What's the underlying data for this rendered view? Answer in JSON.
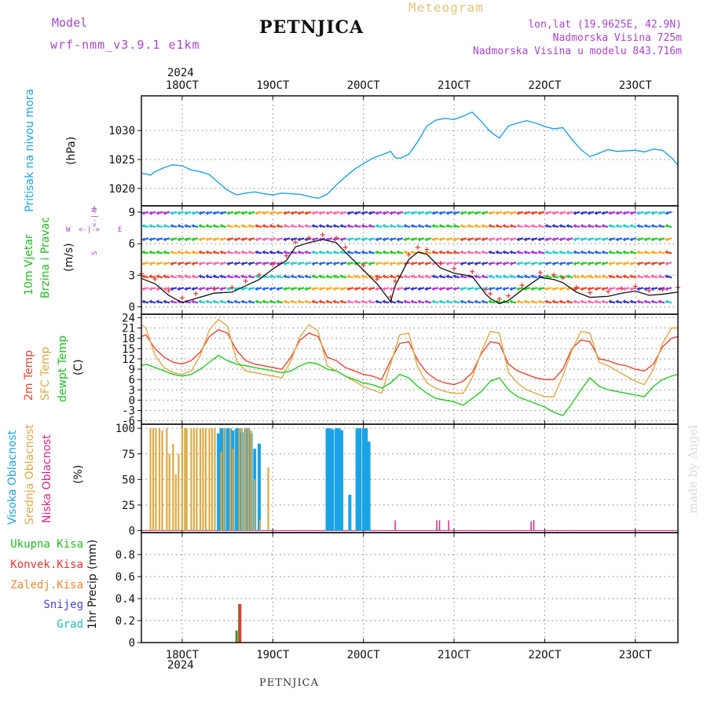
{
  "header": {
    "model_label": "Model",
    "model_name": "wrf-nmm_v3.9.1 e1km",
    "station": "PETNJICA",
    "product": "Meteogram",
    "coords": "lon,lat (19.9625E, 42.9N)",
    "elevation": "Nadmorska Visina 725m",
    "model_elevation": "Nadmorska Visina u modelu 843.716m"
  },
  "top_axis": {
    "year": "2024",
    "dates": [
      "18OCT",
      "19OCT",
      "20OCT",
      "21OCT",
      "22OCT",
      "23OCT"
    ]
  },
  "bottom_axis": {
    "year": "2024",
    "dates": [
      "18OCT",
      "19OCT",
      "20OCT",
      "21OCT",
      "22OCT",
      "23OCT"
    ]
  },
  "footer_station": "PETNJICA",
  "watermark": "made by Angel",
  "panels": {
    "pressure": {
      "label": "Pritisak na nivou mora",
      "unit": "(hPa)",
      "color": "#1aa3e6"
    },
    "wind": {
      "label_line1": "10m Vjetar",
      "label_line2": "Brzina i Pravac",
      "unit": "(m/s)",
      "compass_n": "N",
      "compass_s": "S",
      "compass_w": "W",
      "compass_e": "E",
      "compass_arrow_top": "<-|->",
      "compass_arrow_bottom": "<-|->",
      "label_color": "#22bb22",
      "compass_color": "#aa44cc"
    },
    "temperature": {
      "label_2m": "2m Temp",
      "label_sfc": "SFC Temp",
      "label_dewpt": "dewpt Temp",
      "unit": "(C)",
      "colors": {
        "t2m": "#ee4433",
        "sfc": "#ddaa44",
        "dewpt": "#22cc22"
      }
    },
    "clouds": {
      "label_high": "Visoka Oblacnost",
      "label_mid": "Srednja Oblacnost",
      "label_low": "Niska Oblacnost",
      "unit": "(%)",
      "colors": {
        "high": "#1aa3e6",
        "mid": "#ddaa44",
        "low": "#dd2288"
      }
    },
    "precip": {
      "legend": [
        {
          "label": "Ukupna Kisa",
          "color": "#22bb22"
        },
        {
          "label": "Konvek.Kisa",
          "color": "#ee3333"
        },
        {
          "label": "Zaledj.Kisa",
          "color": "#ee8833"
        },
        {
          "label": "Snijeg",
          "color": "#4444dd"
        },
        {
          "label": "Grad",
          "color": "#22bbbb"
        }
      ],
      "axis_label": "1hr Precip",
      "unit": "(mm)"
    }
  },
  "chart_data": [
    {
      "type": "line",
      "name": "pressure",
      "ylim": [
        1017,
        1036
      ],
      "yticks": [
        1020,
        1025,
        1030
      ],
      "xlim_days": [
        17.55,
        23.47
      ],
      "x_day": [
        17.55,
        17.6,
        17.65,
        17.7,
        17.8,
        17.9,
        18.0,
        18.1,
        18.2,
        18.3,
        18.4,
        18.5,
        18.6,
        18.7,
        18.8,
        18.9,
        19.0,
        19.1,
        19.2,
        19.3,
        19.4,
        19.5,
        19.6,
        19.7,
        19.8,
        19.9,
        20.0,
        20.1,
        20.2,
        20.3,
        20.35,
        20.4,
        20.5,
        20.6,
        20.7,
        20.8,
        20.9,
        21.0,
        21.1,
        21.2,
        21.3,
        21.4,
        21.5,
        21.6,
        21.7,
        21.8,
        21.9,
        22.0,
        22.1,
        22.2,
        22.3,
        22.4,
        22.5,
        22.6,
        22.7,
        22.8,
        22.9,
        23.0,
        23.1,
        23.2,
        23.3,
        23.4,
        23.47
      ],
      "values": [
        1022.6,
        1022.5,
        1022.3,
        1022.9,
        1023.6,
        1024.1,
        1023.9,
        1023.2,
        1022.9,
        1022.4,
        1021.0,
        1019.7,
        1018.9,
        1019.2,
        1019.4,
        1019.1,
        1018.9,
        1019.2,
        1019.1,
        1019.0,
        1018.6,
        1018.3,
        1019.0,
        1020.6,
        1022.0,
        1023.3,
        1024.3,
        1025.2,
        1025.8,
        1026.4,
        1025.3,
        1025.2,
        1025.9,
        1028.1,
        1030.8,
        1031.8,
        1032.1,
        1031.9,
        1032.5,
        1033.2,
        1031.6,
        1029.8,
        1028.7,
        1030.8,
        1031.3,
        1031.7,
        1031.3,
        1030.7,
        1030.3,
        1030.5,
        1028.5,
        1026.7,
        1025.5,
        1026.1,
        1026.7,
        1026.4,
        1026.5,
        1026.6,
        1026.3,
        1026.8,
        1026.6,
        1025.3,
        1024.0
      ]
    },
    {
      "type": "line",
      "name": "wind",
      "ylim": [
        -0.7,
        9.6
      ],
      "yticks": [
        0,
        3,
        6,
        9
      ],
      "xlim_days": [
        17.55,
        23.47
      ],
      "x_day": [
        17.55,
        17.7,
        17.85,
        18.0,
        18.15,
        18.35,
        18.55,
        18.7,
        18.85,
        19.0,
        19.15,
        19.25,
        19.4,
        19.55,
        19.7,
        19.8,
        20.0,
        20.15,
        20.3,
        20.35,
        20.5,
        20.6,
        20.7,
        20.85,
        21.0,
        21.2,
        21.35,
        21.4,
        21.5,
        21.6,
        21.75,
        21.95,
        22.1,
        22.2,
        22.35,
        22.5,
        22.7,
        22.85,
        23.0,
        23.15,
        23.3,
        23.47
      ],
      "values": [
        2.7,
        2.2,
        1.1,
        0.4,
        0.8,
        1.3,
        1.4,
        2.0,
        2.6,
        3.6,
        4.4,
        5.7,
        6.1,
        6.4,
        6.1,
        5.2,
        3.5,
        2.2,
        0.5,
        2.0,
        4.5,
        5.2,
        5.0,
        3.7,
        3.2,
        2.9,
        1.2,
        0.8,
        0.3,
        0.6,
        1.6,
        2.8,
        2.6,
        2.3,
        1.4,
        0.9,
        1.0,
        1.3,
        1.5,
        1.1,
        1.2,
        1.4
      ],
      "barb_rows": [
        8.9,
        7.7,
        6.4,
        5.2,
        4.1,
        2.9,
        1.7,
        0.5
      ]
    },
    {
      "type": "line",
      "name": "temperature",
      "ylim": [
        -7,
        25
      ],
      "yticks": [
        -6,
        -3,
        0,
        3,
        6,
        9,
        12,
        15,
        18,
        21,
        24
      ],
      "xlim_days": [
        17.55,
        23.47
      ],
      "x_day": [
        17.55,
        17.6,
        17.7,
        17.8,
        17.9,
        18.0,
        18.1,
        18.2,
        18.3,
        18.4,
        18.5,
        18.6,
        18.7,
        18.8,
        18.9,
        19.0,
        19.1,
        19.2,
        19.3,
        19.4,
        19.5,
        19.6,
        19.7,
        19.8,
        19.9,
        20.0,
        20.1,
        20.2,
        20.3,
        20.4,
        20.5,
        20.6,
        20.7,
        20.8,
        20.9,
        21.0,
        21.1,
        21.2,
        21.3,
        21.4,
        21.5,
        21.6,
        21.7,
        21.8,
        21.9,
        22.0,
        22.1,
        22.2,
        22.3,
        22.4,
        22.5,
        22.6,
        22.7,
        22.8,
        22.9,
        23.0,
        23.1,
        23.2,
        23.3,
        23.4,
        23.47
      ],
      "series": [
        {
          "name": "2m Temp",
          "values": [
            18.5,
            19.0,
            15.0,
            12.5,
            11.0,
            10.5,
            11.5,
            14.0,
            18.5,
            20.5,
            19.5,
            14.5,
            11.5,
            10.5,
            10.0,
            9.5,
            9.0,
            12.5,
            17.5,
            19.5,
            18.5,
            12.5,
            11.5,
            9.5,
            8.5,
            7.5,
            7.0,
            6.0,
            11.5,
            16.5,
            17.0,
            11.5,
            8.0,
            6.0,
            5.0,
            4.5,
            5.5,
            8.0,
            13.5,
            17.0,
            16.5,
            10.5,
            8.5,
            7.5,
            6.5,
            6.0,
            6.0,
            9.0,
            15.0,
            17.5,
            17.0,
            12.0,
            11.5,
            10.5,
            10.0,
            9.0,
            8.5,
            10.5,
            15.5,
            18.0,
            18.5
          ]
        },
        {
          "name": "SFC Temp",
          "values": [
            22.0,
            21.0,
            13.0,
            9.5,
            8.0,
            7.5,
            8.5,
            13.0,
            20.5,
            23.5,
            21.5,
            11.5,
            8.5,
            8.0,
            7.5,
            7.0,
            6.5,
            11.5,
            18.5,
            22.0,
            20.0,
            10.0,
            8.5,
            7.0,
            5.5,
            4.0,
            3.0,
            2.0,
            10.5,
            19.0,
            19.5,
            9.5,
            5.0,
            3.5,
            2.5,
            2.0,
            2.0,
            6.5,
            14.0,
            20.0,
            19.5,
            8.0,
            5.0,
            3.0,
            2.0,
            1.0,
            1.0,
            7.0,
            14.5,
            20.0,
            19.5,
            11.0,
            10.0,
            8.5,
            7.0,
            5.5,
            4.5,
            9.0,
            16.5,
            21.0,
            21.0
          ]
        },
        {
          "name": "dewpt Temp",
          "values": [
            10.0,
            10.5,
            9.5,
            8.5,
            7.5,
            7.0,
            7.5,
            9.0,
            11.0,
            13.0,
            11.5,
            10.5,
            10.0,
            9.5,
            9.0,
            8.5,
            8.0,
            8.5,
            10.0,
            11.0,
            10.5,
            9.0,
            8.5,
            7.0,
            6.0,
            5.0,
            4.5,
            3.5,
            5.0,
            7.5,
            6.5,
            4.0,
            2.0,
            0.5,
            0.0,
            -0.5,
            -1.5,
            0.5,
            2.5,
            5.5,
            6.5,
            3.0,
            1.0,
            0.0,
            -1.0,
            -2.0,
            -3.5,
            -4.5,
            -1.0,
            3.0,
            6.5,
            4.0,
            3.0,
            2.5,
            2.0,
            1.5,
            1.0,
            4.0,
            6.0,
            7.0,
            7.5
          ]
        }
      ]
    },
    {
      "type": "bar",
      "name": "clouds",
      "ylim": [
        -2,
        104
      ],
      "yticks": [
        0,
        25,
        50,
        75,
        100
      ],
      "xlim_days": [
        17.55,
        23.47
      ],
      "series": [
        {
          "name": "Visoka Oblacnost",
          "x_day": [
            18.4,
            18.43,
            18.46,
            18.5,
            18.53,
            18.56,
            18.6,
            18.63,
            18.66,
            18.7,
            18.73,
            18.76,
            18.8,
            18.85,
            19.6,
            19.63,
            19.66,
            19.7,
            19.73,
            19.76,
            19.85,
            19.93,
            19.96,
            20.0,
            20.03,
            20.06
          ],
          "values": [
            95,
            100,
            100,
            100,
            100,
            98,
            100,
            100,
            96,
            100,
            100,
            95,
            80,
            85,
            100,
            100,
            99,
            100,
            100,
            98,
            35,
            100,
            100,
            100,
            100,
            87
          ]
        },
        {
          "name": "Srednja Oblacnost",
          "x_day": [
            17.65,
            17.68,
            17.71,
            17.75,
            17.78,
            17.83,
            17.86,
            17.9,
            17.93,
            17.96,
            18.0,
            18.03,
            18.05,
            18.1,
            18.13,
            18.16,
            18.2,
            18.23,
            18.26,
            18.3,
            18.33,
            18.36,
            18.43,
            18.46,
            18.53,
            18.56,
            18.63,
            18.66,
            18.7,
            18.73,
            18.76,
            18.8,
            18.86,
            18.95
          ],
          "values": [
            100,
            100,
            100,
            100,
            98,
            100,
            75,
            85,
            55,
            75,
            100,
            100,
            100,
            100,
            100,
            100,
            100,
            100,
            100,
            100,
            100,
            100,
            77,
            100,
            100,
            80,
            100,
            100,
            100,
            100,
            98,
            50,
            10,
            62
          ]
        },
        {
          "name": "Niska Oblacnost",
          "x_day": [
            20.35,
            20.81,
            20.84,
            20.94,
            21.85,
            21.88
          ],
          "values": [
            10,
            10,
            10,
            10,
            9,
            10
          ]
        }
      ]
    },
    {
      "type": "bar",
      "name": "precip",
      "ylim": [
        0,
        1.0
      ],
      "yticks": [
        0,
        0.2,
        0.4,
        0.6,
        0.8
      ],
      "xlim_days": [
        17.55,
        23.47
      ],
      "series": [
        {
          "name": "Ukupna Kisa",
          "x_day": [
            18.6,
            18.63
          ],
          "values": [
            0.11,
            0.35
          ]
        },
        {
          "name": "Konvek.Kisa",
          "x_day": [
            18.64
          ],
          "values": [
            0.35
          ]
        }
      ]
    }
  ]
}
